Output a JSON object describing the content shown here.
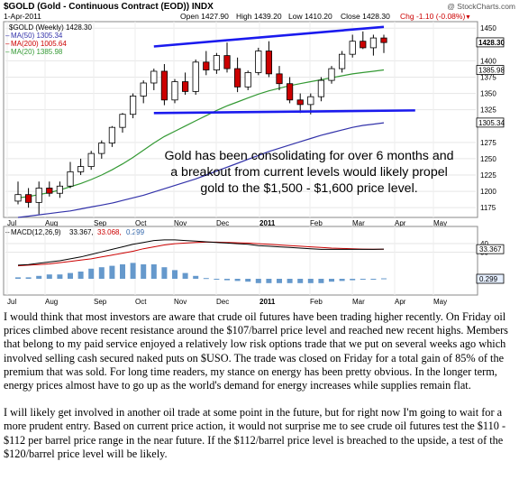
{
  "chart_data": [
    {
      "type": "candlestick",
      "symbol_line": "$GOLD (Gold - Continuous Contract (EOD)) INDX",
      "date_label": "1-Apr-2011",
      "watermark": "@ StockCharts.com",
      "ohlc_header": {
        "open": "Open 1427.90",
        "high": "High 1439.20",
        "low": "Low 1410.20",
        "close": "Close 1428.30",
        "chg": "Chg -1.10 (-0.08%)",
        "chg_arrow": "▼"
      },
      "legend": [
        {
          "name": "$GOLD (Weekly) 1428.30",
          "color": "#000000"
        },
        {
          "name": "MA(50) 1305.34",
          "color": "#3333aa"
        },
        {
          "name": "MA(200) 1005.64",
          "color": "#cc0000"
        },
        {
          "name": "MA(20) 1385.98",
          "color": "#339933"
        }
      ],
      "price_tags": [
        "1428.30",
        "1385.98",
        "1305.34"
      ],
      "x_ticks": [
        "Jul",
        "Aug",
        "Sep",
        "Oct",
        "Nov",
        "Dec",
        "2011",
        "Feb",
        "Mar",
        "Apr",
        "May"
      ],
      "y_ticks": [
        "1450",
        "1400",
        "1375",
        "1350",
        "1325",
        "1275",
        "1250",
        "1225",
        "1200",
        "1175"
      ],
      "ylim": [
        1160,
        1460
      ],
      "candles": [
        {
          "o": 1185,
          "h": 1215,
          "l": 1180,
          "c": 1195
        },
        {
          "o": 1195,
          "h": 1205,
          "l": 1175,
          "c": 1183
        },
        {
          "o": 1183,
          "h": 1215,
          "l": 1165,
          "c": 1205
        },
        {
          "o": 1205,
          "h": 1215,
          "l": 1192,
          "c": 1197
        },
        {
          "o": 1197,
          "h": 1215,
          "l": 1190,
          "c": 1208
        },
        {
          "o": 1208,
          "h": 1245,
          "l": 1205,
          "c": 1230
        },
        {
          "o": 1230,
          "h": 1250,
          "l": 1225,
          "c": 1238
        },
        {
          "o": 1238,
          "h": 1262,
          "l": 1233,
          "c": 1258
        },
        {
          "o": 1258,
          "h": 1278,
          "l": 1250,
          "c": 1274
        },
        {
          "o": 1274,
          "h": 1300,
          "l": 1268,
          "c": 1298
        },
        {
          "o": 1298,
          "h": 1320,
          "l": 1290,
          "c": 1318
        },
        {
          "o": 1318,
          "h": 1350,
          "l": 1312,
          "c": 1346
        },
        {
          "o": 1346,
          "h": 1370,
          "l": 1335,
          "c": 1366
        },
        {
          "o": 1366,
          "h": 1388,
          "l": 1355,
          "c": 1384
        },
        {
          "o": 1384,
          "h": 1395,
          "l": 1332,
          "c": 1340
        },
        {
          "o": 1340,
          "h": 1372,
          "l": 1335,
          "c": 1368
        },
        {
          "o": 1368,
          "h": 1382,
          "l": 1348,
          "c": 1353
        },
        {
          "o": 1353,
          "h": 1402,
          "l": 1348,
          "c": 1398
        },
        {
          "o": 1398,
          "h": 1415,
          "l": 1378,
          "c": 1386
        },
        {
          "o": 1386,
          "h": 1412,
          "l": 1380,
          "c": 1408
        },
        {
          "o": 1408,
          "h": 1428,
          "l": 1382,
          "c": 1388
        },
        {
          "o": 1388,
          "h": 1405,
          "l": 1352,
          "c": 1360
        },
        {
          "o": 1360,
          "h": 1385,
          "l": 1355,
          "c": 1382
        },
        {
          "o": 1382,
          "h": 1420,
          "l": 1378,
          "c": 1415
        },
        {
          "o": 1415,
          "h": 1430,
          "l": 1375,
          "c": 1380
        },
        {
          "o": 1380,
          "h": 1392,
          "l": 1355,
          "c": 1365
        },
        {
          "o": 1365,
          "h": 1375,
          "l": 1335,
          "c": 1340
        },
        {
          "o": 1340,
          "h": 1350,
          "l": 1320,
          "c": 1333
        },
        {
          "o": 1333,
          "h": 1350,
          "l": 1318,
          "c": 1345
        },
        {
          "o": 1345,
          "h": 1375,
          "l": 1338,
          "c": 1370
        },
        {
          "o": 1370,
          "h": 1392,
          "l": 1365,
          "c": 1388
        },
        {
          "o": 1388,
          "h": 1415,
          "l": 1382,
          "c": 1410
        },
        {
          "o": 1410,
          "h": 1440,
          "l": 1405,
          "c": 1430
        },
        {
          "o": 1430,
          "h": 1445,
          "l": 1418,
          "c": 1420
        },
        {
          "o": 1420,
          "h": 1440,
          "l": 1408,
          "c": 1435
        },
        {
          "o": 1435,
          "h": 1440,
          "l": 1412,
          "c": 1428
        }
      ],
      "ma20": [
        1190,
        1192,
        1195,
        1198,
        1202,
        1207,
        1212,
        1218,
        1225,
        1233,
        1242,
        1252,
        1263,
        1274,
        1284,
        1292,
        1300,
        1308,
        1316,
        1324,
        1331,
        1337,
        1343,
        1349,
        1354,
        1358,
        1362,
        1365,
        1368,
        1371,
        1374,
        1377,
        1380,
        1382,
        1384,
        1386
      ],
      "ma50": [
        1160,
        1162,
        1164,
        1166,
        1168,
        1170,
        1173,
        1176,
        1179,
        1182,
        1186,
        1190,
        1194,
        1199,
        1204,
        1209,
        1214,
        1219,
        1225,
        1231,
        1237,
        1243,
        1249,
        1255,
        1261,
        1266,
        1271,
        1276,
        1281,
        1286,
        1290,
        1294,
        1298,
        1301,
        1303,
        1305
      ],
      "trendlines": [
        {
          "from": [
            13,
            1422
          ],
          "to": [
            35,
            1452
          ]
        },
        {
          "from": [
            13,
            1320
          ],
          "to": [
            38,
            1324
          ]
        }
      ],
      "annotation": "Gold has been consolidating for over 6 months and a breakout from current levels would likely propel gold to the $1,500 - $1,600 price level."
    },
    {
      "type": "macd",
      "legend": {
        "label": "MACD(12,26,9)",
        "macd": "33.367,",
        "signal": "33.068,",
        "hist": "0.299"
      },
      "y_ticks": [
        "40",
        "30"
      ],
      "price_tags": [
        "33.367",
        "0.299"
      ],
      "x_ticks": [
        "Jul",
        "Aug",
        "Sep",
        "Oct",
        "Nov",
        "Dec",
        "2011",
        "Feb",
        "Mar",
        "Apr",
        "May"
      ],
      "macd": [
        8,
        9,
        11,
        13,
        15,
        18,
        21,
        25,
        29,
        33,
        37,
        41,
        44,
        47,
        48,
        48,
        47,
        46,
        45,
        44,
        43,
        42,
        41,
        39,
        38,
        37,
        36,
        35,
        34,
        33,
        33,
        33,
        33,
        33,
        33,
        33.4
      ],
      "signal": [
        7,
        8,
        9,
        10,
        12,
        14,
        16,
        18,
        21,
        24,
        27,
        30,
        34,
        37,
        40,
        42,
        43,
        44,
        44.5,
        44.5,
        44,
        43.5,
        43,
        42,
        41,
        40,
        39,
        38,
        37,
        36,
        35,
        34.5,
        34,
        33.5,
        33.2,
        33.1
      ],
      "hist": [
        1,
        1,
        2,
        3,
        3,
        4,
        5,
        7,
        8,
        9,
        10,
        11,
        10,
        10,
        8,
        6,
        4,
        2,
        0.5,
        -0.5,
        -1,
        -1.5,
        -2,
        -3,
        -3,
        -3,
        -3,
        -3,
        -3,
        -3,
        -2,
        -1.5,
        -1,
        -0.5,
        -0.2,
        0.3
      ]
    }
  ],
  "article": {
    "paragraphs": [
      "I would think that most investors are aware that crude oil futures have been trading higher recently. On Friday oil prices climbed above recent resistance around the $107/barrel price level and reached new recent highs. Members that belong to my paid service enjoyed a relatively low risk options trade that we put on several weeks ago which involved selling cash secured naked puts on $USO. The trade was closed on Friday for a total gain of 85% of the premium that was sold. For long time readers, my stance on energy has been pretty obvious. In the longer term, energy prices almost have to go up as the world's demand for energy increases while supplies remain flat.",
      "I will likely get involved in another oil trade at some point in the future, but for right now I'm going to wait for a more prudent entry. Based on current price action, it would not surprise me to see crude oil futures test the $110 - $112 per barrel price range in the near future. If the $112/barrel price level is breached to the upside, a test of the $120/barrel price level will be likely."
    ]
  },
  "colors": {
    "up_candle": "#ffffff",
    "down_candle": "#cc0000",
    "trendline": "#1a1aee",
    "ma20": "#339933",
    "ma50": "#3333aa",
    "macd": "#000000",
    "signal": "#cc0000",
    "hist": "#6699cc"
  }
}
